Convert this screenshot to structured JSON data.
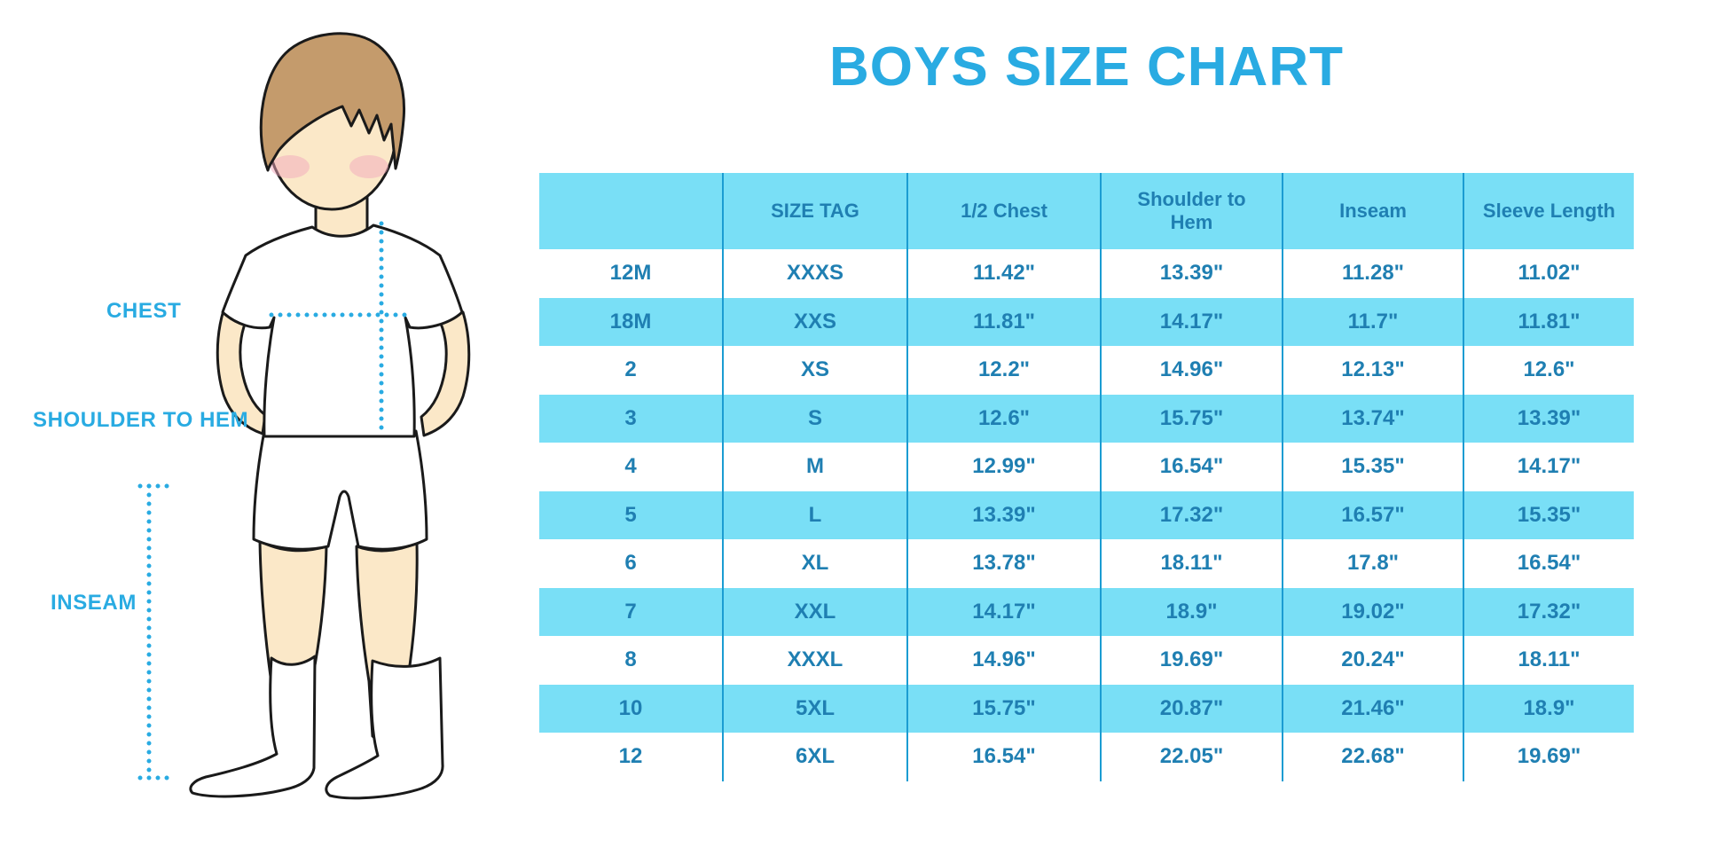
{
  "title": "BOYS SIZE CHART",
  "colors": {
    "accent": "#29ABE2",
    "header_bg": "#79DFF6",
    "alt_row_bg": "#79DFF6",
    "cell_text": "#1F7FB2",
    "divider": "#1B9CD2",
    "skin": "#FBE8C8",
    "hair": "#C49B6C",
    "outline": "#1A1A1A"
  },
  "figure": {
    "labels": {
      "chest": "CHEST",
      "shoulder_to_hem": "SHOULDER TO HEM",
      "inseam": "INSEAM"
    }
  },
  "chart_data": {
    "type": "table",
    "title": "BOYS SIZE CHART",
    "columns": [
      "",
      "SIZE TAG",
      "1/2 Chest",
      "Shoulder to Hem",
      "Inseam",
      "Sleeve Length"
    ],
    "rows": [
      [
        "12M",
        "XXXS",
        "11.42\"",
        "13.39\"",
        "11.28\"",
        "11.02\""
      ],
      [
        "18M",
        "XXS",
        "11.81\"",
        "14.17\"",
        "11.7\"",
        "11.81\""
      ],
      [
        "2",
        "XS",
        "12.2\"",
        "14.96\"",
        "12.13\"",
        "12.6\""
      ],
      [
        "3",
        "S",
        "12.6\"",
        "15.75\"",
        "13.74\"",
        "13.39\""
      ],
      [
        "4",
        "M",
        "12.99\"",
        "16.54\"",
        "15.35\"",
        "14.17\""
      ],
      [
        "5",
        "L",
        "13.39\"",
        "17.32\"",
        "16.57\"",
        "15.35\""
      ],
      [
        "6",
        "XL",
        "13.78\"",
        "18.11\"",
        "17.8\"",
        "16.54\""
      ],
      [
        "7",
        "XXL",
        "14.17\"",
        "18.9\"",
        "19.02\"",
        "17.32\""
      ],
      [
        "8",
        "XXXL",
        "14.96\"",
        "19.69\"",
        "20.24\"",
        "18.11\""
      ],
      [
        "10",
        "5XL",
        "15.75\"",
        "20.87\"",
        "21.46\"",
        "18.9\""
      ],
      [
        "12",
        "6XL",
        "16.54\"",
        "22.05\"",
        "22.68\"",
        "19.69\""
      ]
    ]
  }
}
